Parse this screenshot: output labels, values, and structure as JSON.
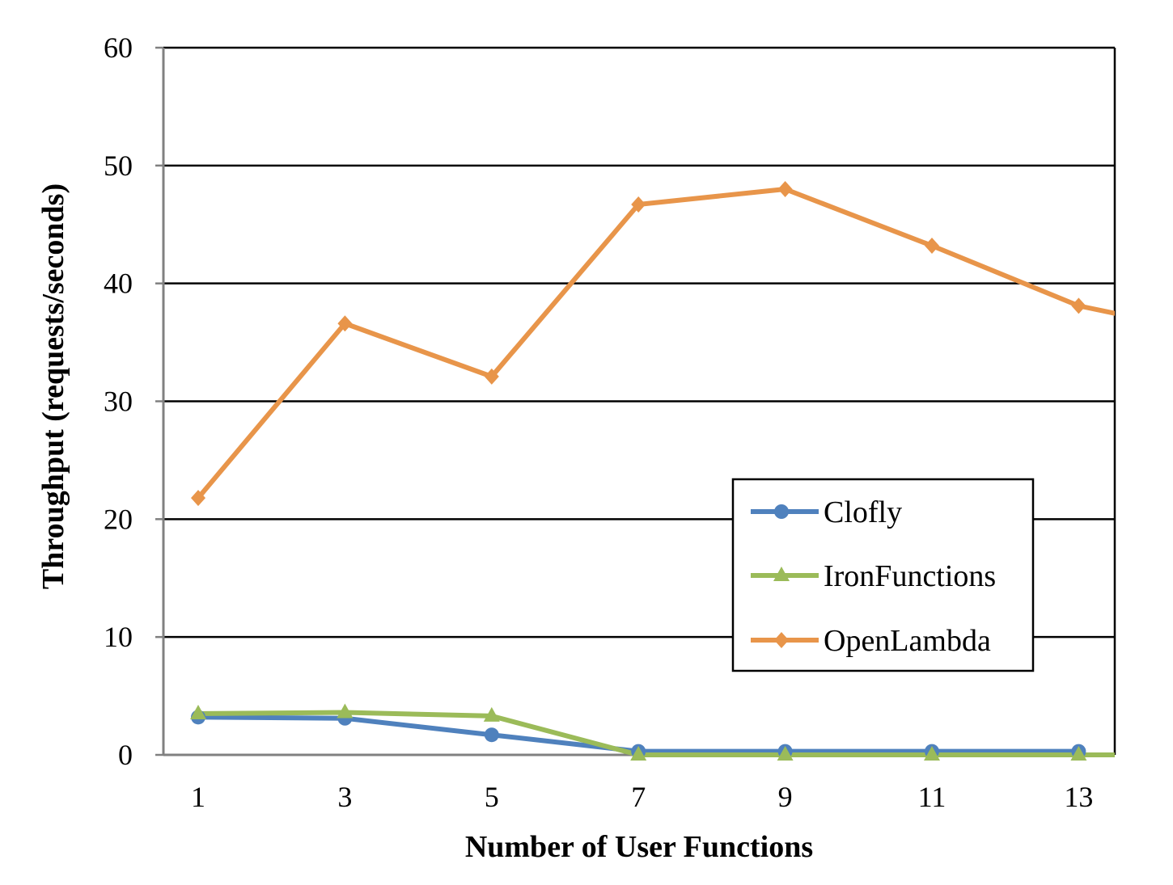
{
  "chart_data": {
    "type": "line",
    "title": "",
    "xlabel": "Number of User Functions",
    "ylabel": "Throughput (requests/seconds)",
    "x": [
      1,
      3,
      5,
      7,
      9,
      11,
      13,
      14
    ],
    "x_tick_labels": [
      "1",
      "3",
      "5",
      "7",
      "9",
      "11",
      "13"
    ],
    "ylim": [
      0,
      60
    ],
    "y_ticks": [
      0,
      10,
      20,
      30,
      40,
      50,
      60
    ],
    "y_tick_labels": [
      "0",
      "10",
      "20",
      "30",
      "40",
      "50",
      "60"
    ],
    "grid": "horizontal",
    "legend_position": "right",
    "series": [
      {
        "name": "Clofly",
        "color": "#4f81bd",
        "marker": "circle",
        "values": [
          3.2,
          3.1,
          1.7,
          0.3,
          0.3,
          0.3,
          0.3,
          null
        ]
      },
      {
        "name": "IronFunctions",
        "color": "#9bbb59",
        "marker": "triangle",
        "values": [
          3.5,
          3.6,
          3.3,
          0,
          0,
          0,
          0,
          0
        ]
      },
      {
        "name": "OpenLambda",
        "color": "#e8954a",
        "marker": "diamond",
        "values": [
          21.8,
          36.6,
          32.1,
          46.7,
          48.0,
          43.2,
          38.1,
          36.8
        ]
      }
    ]
  }
}
